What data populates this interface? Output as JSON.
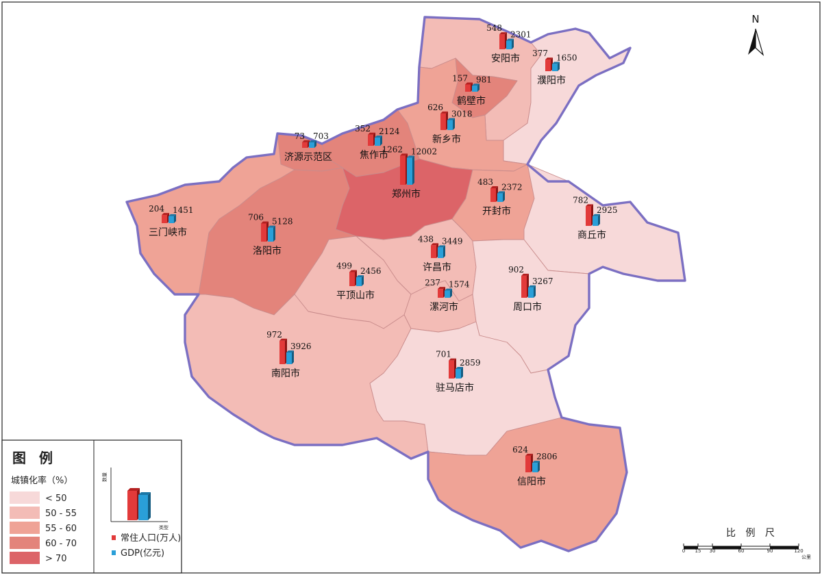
{
  "north_label": "N",
  "legend": {
    "title": "图 例",
    "subtitle": "城镇化率（%）",
    "classes": [
      {
        "label": "< 50",
        "color": "#f7d9d9"
      },
      {
        "label": "50 - 55",
        "color": "#f3bcb6"
      },
      {
        "label": "55 - 60",
        "color": "#efa396"
      },
      {
        "label": "60 - 70",
        "color": "#e3847b"
      },
      {
        "label": "> 70",
        "color": "#dc6468"
      }
    ],
    "chart_y_label": "数量",
    "chart_x_label": "类型",
    "series": [
      {
        "label": "常住人口(万人)",
        "color": "#e23a3a"
      },
      {
        "label": "GDP(亿元)",
        "color": "#2a9fd8"
      }
    ]
  },
  "scale": {
    "title": "比 例 尺",
    "ticks": [
      "0",
      "15",
      "30",
      "60",
      "90",
      "120"
    ],
    "unit": "公里"
  },
  "cities": [
    {
      "name": "安阳市",
      "pop": 548,
      "gdp": 2301,
      "class": 1
    },
    {
      "name": "濮阳市",
      "pop": 377,
      "gdp": 1650,
      "class": 0
    },
    {
      "name": "鹤壁市",
      "pop": 157,
      "gdp": 981,
      "class": 3
    },
    {
      "name": "新乡市",
      "pop": 626,
      "gdp": 3018,
      "class": 2
    },
    {
      "name": "焦作市",
      "pop": 352,
      "gdp": 2124,
      "class": 3
    },
    {
      "name": "济源示范区",
      "pop": 73,
      "gdp": 703,
      "class": 3
    },
    {
      "name": "郑州市",
      "pop": 1262,
      "gdp": 12002,
      "class": 4
    },
    {
      "name": "开封市",
      "pop": 483,
      "gdp": 2372,
      "class": 2
    },
    {
      "name": "商丘市",
      "pop": 782,
      "gdp": 2925,
      "class": 0
    },
    {
      "name": "三门峡市",
      "pop": 204,
      "gdp": 1451,
      "class": 2
    },
    {
      "name": "洛阳市",
      "pop": 706,
      "gdp": 5128,
      "class": 3
    },
    {
      "name": "许昌市",
      "pop": 438,
      "gdp": 3449,
      "class": 1
    },
    {
      "name": "平顶山市",
      "pop": 499,
      "gdp": 2456,
      "class": 1
    },
    {
      "name": "漯河市",
      "pop": 237,
      "gdp": 1574,
      "class": 1
    },
    {
      "name": "周口市",
      "pop": 902,
      "gdp": 3267,
      "class": 0
    },
    {
      "name": "南阳市",
      "pop": 972,
      "gdp": 3926,
      "class": 1
    },
    {
      "name": "驻马店市",
      "pop": 701,
      "gdp": 2859,
      "class": 0
    },
    {
      "name": "信阳市",
      "pop": 624,
      "gdp": 2806,
      "class": 2
    }
  ]
}
